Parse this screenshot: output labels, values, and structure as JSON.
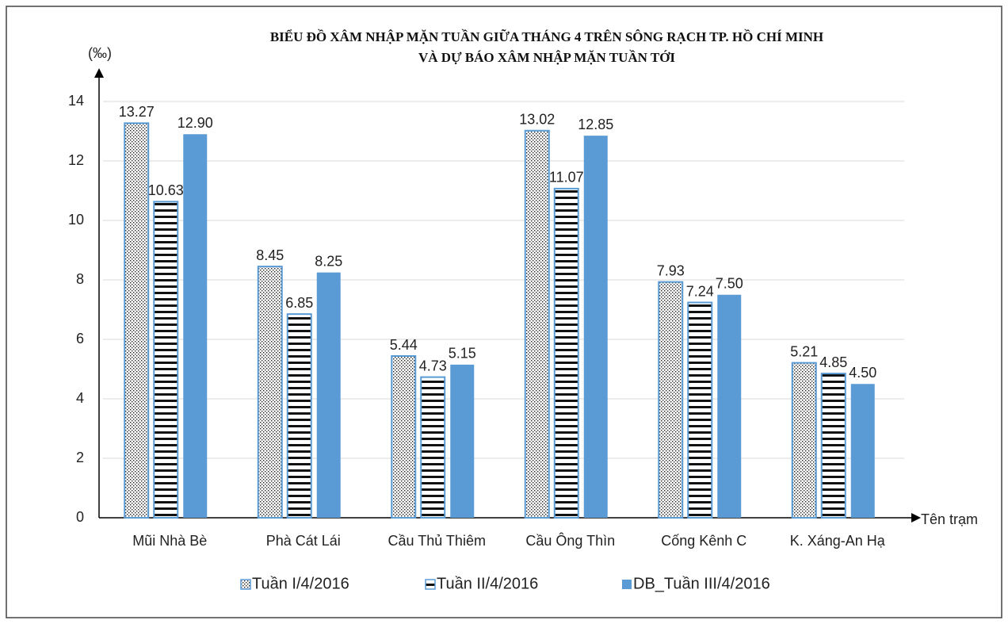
{
  "chart_data": {
    "type": "bar",
    "title": [
      "BIỂU ĐỒ XÂM NHẬP MẶN TUẦN GIỮA THÁNG 4 TRÊN SÔNG RẠCH TP. HỒ CHÍ MINH",
      "VÀ DỰ BÁO XÂM NHẬP MẶN TUẦN TỚI"
    ],
    "y_label": "(‰)",
    "x_label": "Tên trạm",
    "categories": [
      "Mũi Nhà Bè",
      "Phà Cát Lái",
      "Cầu Thủ Thiêm",
      "Cầu Ông Thìn",
      "Cống Kênh C",
      "K. Xáng-An Hạ"
    ],
    "series": [
      {
        "name": "Tuần I/4/2016",
        "color": "#5b9bd5",
        "pattern": "dots",
        "values": [
          13.27,
          8.45,
          5.44,
          13.02,
          7.93,
          5.21
        ],
        "value_labels": [
          "13.27",
          "8.45",
          "5.44",
          "13.02",
          "7.93",
          "5.21"
        ]
      },
      {
        "name": "Tuần II/4/2016",
        "color": "#5b9bd5",
        "pattern": "hlines",
        "values": [
          10.63,
          6.85,
          4.73,
          11.07,
          7.24,
          4.85
        ],
        "value_labels": [
          "10.63",
          "6.85",
          "4.73",
          "11.07",
          "7.24",
          "4.85"
        ]
      },
      {
        "name": "DB_Tuần III/4/2016",
        "color": "#5b9bd5",
        "pattern": "solid",
        "values": [
          12.9,
          8.25,
          5.15,
          12.85,
          7.5,
          4.5
        ],
        "value_labels": [
          "12.90",
          "8.25",
          "5.15",
          "12.85",
          "7.50",
          "4.50"
        ]
      }
    ],
    "ylim": [
      0,
      14
    ],
    "yticks": [
      0,
      2,
      4,
      6,
      8,
      10,
      12,
      14
    ],
    "grid": true,
    "legend": "bottom"
  }
}
